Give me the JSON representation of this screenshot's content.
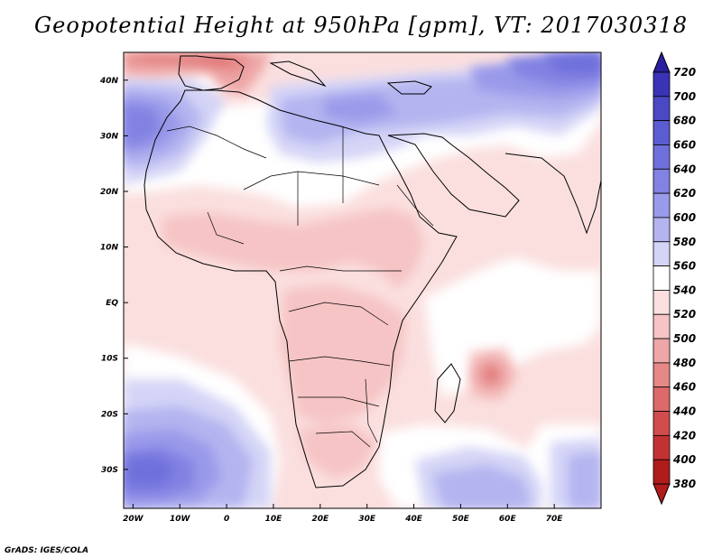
{
  "title": "Geopotential Height at 950hPa [gpm], VT: 2017030318",
  "credit": "GrADS: IGES/COLA",
  "map": {
    "region": "Africa and surrounding oceans",
    "lon_range": [
      -22,
      80
    ],
    "lat_range": [
      -37,
      45
    ],
    "lon_ticks": [
      "20W",
      "10W",
      "0",
      "10E",
      "20E",
      "30E",
      "40E",
      "50E",
      "60E",
      "70E"
    ],
    "lat_ticks": [
      "40N",
      "30N",
      "20N",
      "10N",
      "EQ",
      "10S",
      "20S",
      "30S"
    ]
  },
  "colorbar": {
    "levels": [
      "720",
      "700",
      "680",
      "660",
      "640",
      "620",
      "600",
      "580",
      "560",
      "540",
      "520",
      "500",
      "480",
      "460",
      "440",
      "420",
      "400",
      "380"
    ],
    "colors": [
      "#2a1f9e",
      "#3a33b5",
      "#4a48c5",
      "#5c5cd2",
      "#6f70db",
      "#8282e3",
      "#9a9aea",
      "#b4b4f0",
      "#d4d4f7",
      "#ffffff",
      "#fbdfdf",
      "#f6c4c4",
      "#eea6a6",
      "#e68888",
      "#dc6a6a",
      "#d14c4c",
      "#c33232",
      "#b01c1c"
    ]
  }
}
